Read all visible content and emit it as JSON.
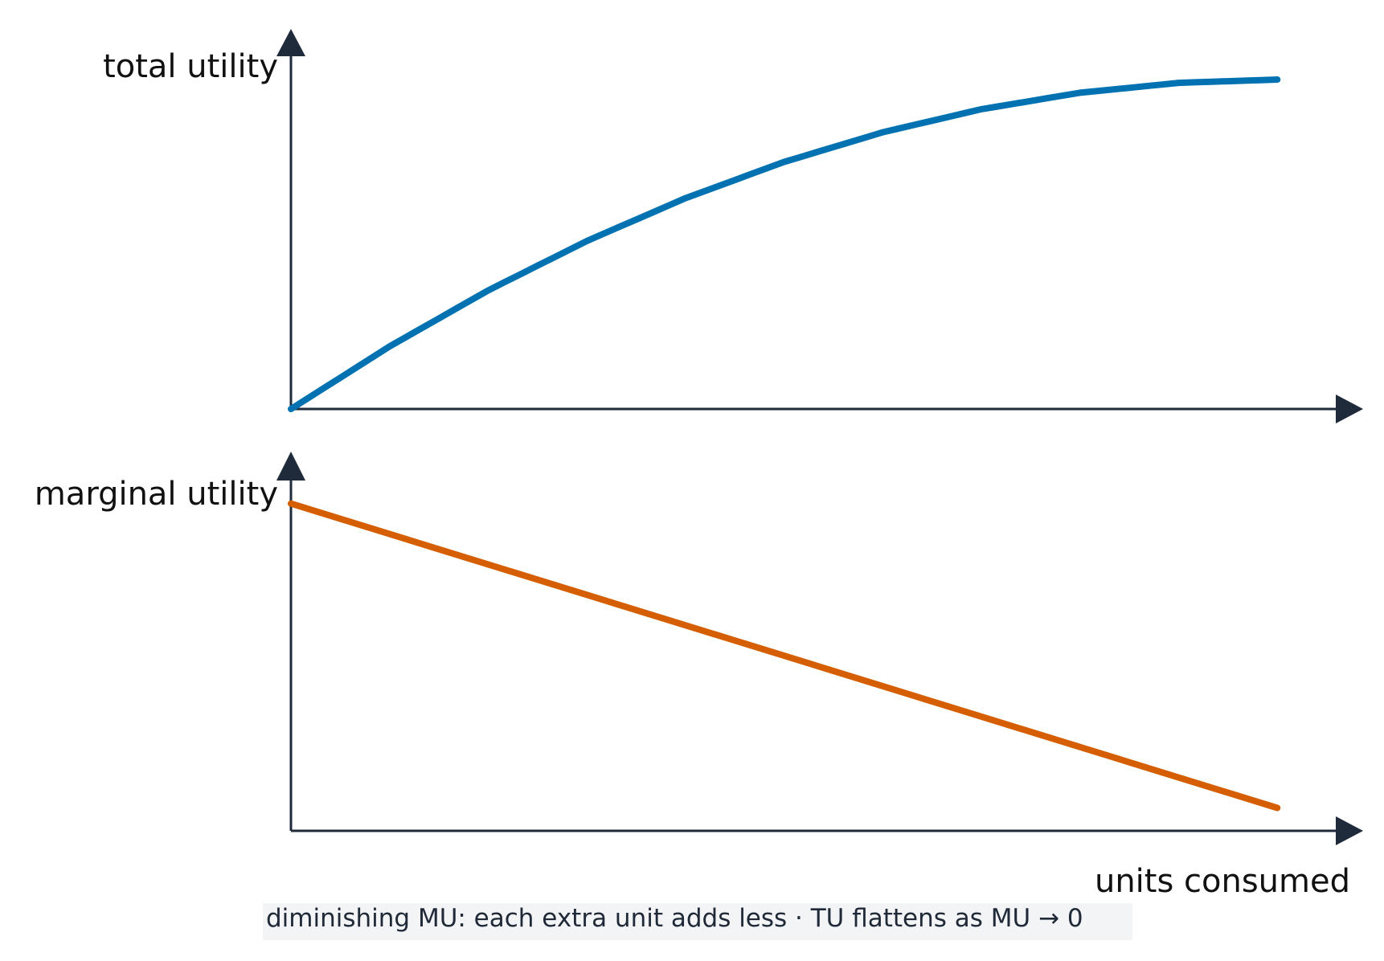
{
  "chart_data": [
    {
      "type": "line",
      "ylabel": "total utility",
      "xlabel": "",
      "x": [
        0,
        0.1,
        0.2,
        0.3,
        0.4,
        0.5,
        0.6,
        0.7,
        0.8,
        0.9,
        1.0
      ],
      "series": [
        {
          "name": "",
          "color": "#0072b2",
          "values": [
            0,
            0.19,
            0.36,
            0.51,
            0.64,
            0.75,
            0.84,
            0.91,
            0.96,
            0.99,
            1.0
          ]
        }
      ],
      "xlim": [
        0,
        1.1
      ],
      "ylim": [
        0,
        1.1
      ],
      "grid": false
    },
    {
      "type": "line",
      "ylabel": "marginal utility",
      "xlabel": "units consumed",
      "x": [
        0,
        1.0
      ],
      "series": [
        {
          "name": "",
          "color": "#d55e00",
          "values": [
            1.0,
            0.07
          ]
        }
      ],
      "xlim": [
        0,
        1.1
      ],
      "ylim": [
        0,
        1.1
      ],
      "grid": false
    }
  ],
  "annotation": {
    "text": "diminishing MU: each extra unit adds less  ·  TU flattens as MU → 0"
  },
  "colors": {
    "axis": "#1f2a3a",
    "tu_line": "#0072b2",
    "mu_line": "#d55e00",
    "note_bg": "#f3f4f6"
  }
}
